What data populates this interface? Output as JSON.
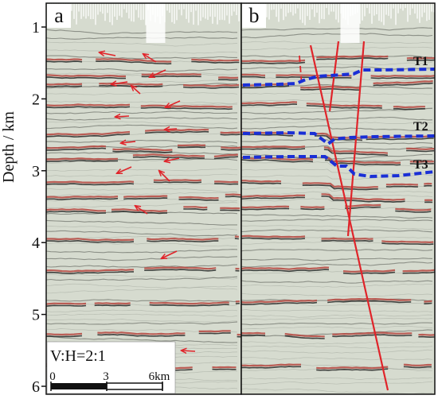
{
  "axis": {
    "label": "Depth / km",
    "ticks": [
      "1",
      "2",
      "3",
      "4",
      "5",
      "6"
    ]
  },
  "panel_a": {
    "label": "a",
    "ratio_text": "V:H=2:1",
    "scale": {
      "ticks": [
        "0",
        "3",
        "6km"
      ]
    }
  },
  "panel_b": {
    "label": "b",
    "horizons": [
      "T1",
      "T2",
      "T3"
    ]
  },
  "colors": {
    "seismic_red": "#b6473f",
    "seismic_dark": "#1c1d1b",
    "seismic_background": "#d6dbcf",
    "arrow_red": "#e0242a",
    "fault_red": "#e0242a",
    "horizon_blue": "#1a2fd6"
  }
}
